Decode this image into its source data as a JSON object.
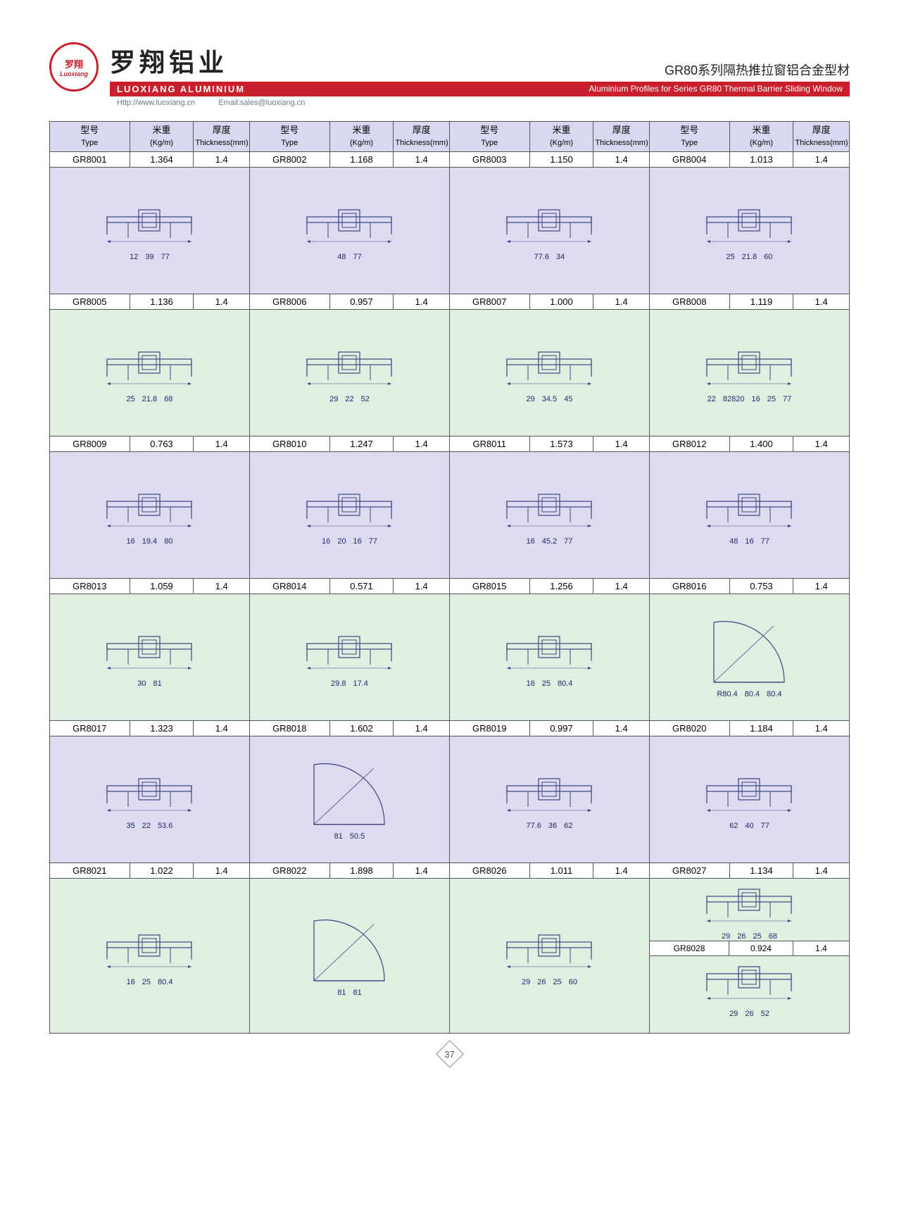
{
  "header": {
    "logo_cn": "罗翔",
    "logo_en": "Luoxiang",
    "cn_title": "罗翔铝业",
    "series_title": "GR80系列隔热推拉窗铝合金型材",
    "redbar_left": "LUOXIANG ALUMINIUM",
    "redbar_right": "Aluminium Profiles for Series GR80 Thermal Barrier Sliding Window",
    "contact_web": "Http://www.luoxiang.cn",
    "contact_email": "Email:sales@luoxiang.cn"
  },
  "columns": {
    "type_cn": "型号",
    "type_en": "Type",
    "kg_cn": "米重",
    "kg_en": "(Kg/m)",
    "th_cn": "厚度",
    "th_en": "Thickness(mm)"
  },
  "rows": [
    {
      "bg": "purple",
      "cells": [
        {
          "type": "GR8001",
          "kg": "1.364",
          "th": "1.4",
          "dims": [
            "12",
            "39",
            "77"
          ]
        },
        {
          "type": "GR8002",
          "kg": "1.168",
          "th": "1.4",
          "dims": [
            "48",
            "77"
          ]
        },
        {
          "type": "GR8003",
          "kg": "1.150",
          "th": "1.4",
          "dims": [
            "77.6",
            "34"
          ]
        },
        {
          "type": "GR8004",
          "kg": "1.013",
          "th": "1.4",
          "dims": [
            "25",
            "21.8",
            "60"
          ]
        }
      ]
    },
    {
      "bg": "green",
      "cells": [
        {
          "type": "GR8005",
          "kg": "1.136",
          "th": "1.4",
          "dims": [
            "25",
            "21.8",
            "68"
          ]
        },
        {
          "type": "GR8006",
          "kg": "0.957",
          "th": "1.4",
          "dims": [
            "29",
            "22",
            "52"
          ]
        },
        {
          "type": "GR8007",
          "kg": "1.000",
          "th": "1.4",
          "dims": [
            "29",
            "34.5",
            "45"
          ]
        },
        {
          "type": "GR8008",
          "kg": "1.119",
          "th": "1.4",
          "dims": [
            "22",
            "82820",
            "16",
            "25",
            "77"
          ]
        }
      ]
    },
    {
      "bg": "purple",
      "cells": [
        {
          "type": "GR8009",
          "kg": "0.763",
          "th": "1.4",
          "dims": [
            "16",
            "19.4",
            "80"
          ]
        },
        {
          "type": "GR8010",
          "kg": "1.247",
          "th": "1.4",
          "dims": [
            "16",
            "20",
            "16",
            "77"
          ]
        },
        {
          "type": "GR8011",
          "kg": "1.573",
          "th": "1.4",
          "dims": [
            "16",
            "45.2",
            "77"
          ]
        },
        {
          "type": "GR8012",
          "kg": "1.400",
          "th": "1.4",
          "dims": [
            "48",
            "16",
            "77"
          ]
        }
      ]
    },
    {
      "bg": "green",
      "cells": [
        {
          "type": "GR8013",
          "kg": "1.059",
          "th": "1.4",
          "dims": [
            "30",
            "81"
          ]
        },
        {
          "type": "GR8014",
          "kg": "0.571",
          "th": "1.4",
          "dims": [
            "29.8",
            "17.4"
          ]
        },
        {
          "type": "GR8015",
          "kg": "1.256",
          "th": "1.4",
          "dims": [
            "16",
            "25",
            "80.4"
          ]
        },
        {
          "type": "GR8016",
          "kg": "0.753",
          "th": "1.4",
          "dims": [
            "R80.4",
            "80.4",
            "80.4"
          ],
          "shape": "arc"
        }
      ]
    },
    {
      "bg": "purple",
      "cells": [
        {
          "type": "GR8017",
          "kg": "1.323",
          "th": "1.4",
          "dims": [
            "35",
            "22",
            "53.6"
          ]
        },
        {
          "type": "GR8018",
          "kg": "1.602",
          "th": "1.4",
          "dims": [
            "81",
            "50.5"
          ],
          "shape": "arc"
        },
        {
          "type": "GR8019",
          "kg": "0.997",
          "th": "1.4",
          "dims": [
            "77.6",
            "36",
            "62"
          ]
        },
        {
          "type": "GR8020",
          "kg": "1.184",
          "th": "1.4",
          "dims": [
            "62",
            "40",
            "77"
          ]
        }
      ]
    },
    {
      "bg": "green",
      "cells": [
        {
          "type": "GR8021",
          "kg": "1.022",
          "th": "1.4",
          "dims": [
            "16",
            "25",
            "80.4"
          ]
        },
        {
          "type": "GR8022",
          "kg": "1.898",
          "th": "1.4",
          "dims": [
            "81",
            "81"
          ],
          "shape": "arc"
        },
        {
          "type": "GR8026",
          "kg": "1.011",
          "th": "1.4",
          "dims": [
            "29",
            "26",
            "25",
            "60"
          ]
        },
        {
          "split": true,
          "top": {
            "type": "GR8027",
            "kg": "1.134",
            "th": "1.4",
            "dims": [
              "29",
              "26",
              "25",
              "68"
            ]
          },
          "bot": {
            "type": "GR8028",
            "kg": "0.924",
            "th": "1.4",
            "dims": [
              "29",
              "26",
              "52"
            ]
          }
        }
      ]
    }
  ],
  "page_number": "37",
  "colors": {
    "red": "#c8202c",
    "purple_bg": "#dedaf0",
    "green_bg": "#dff0e2",
    "header_bg": "#d8d8f0",
    "line": "#1e2a6e"
  }
}
